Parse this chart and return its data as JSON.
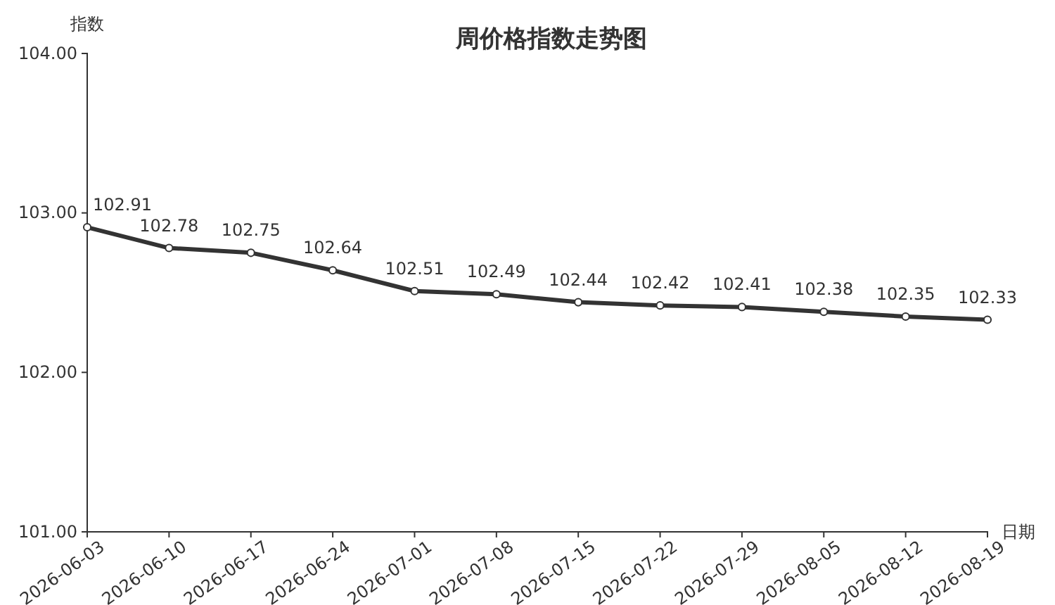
{
  "chart_data": {
    "type": "line",
    "title": "周价格指数走势图",
    "xlabel": "日期",
    "ylabel": "指数",
    "categories": [
      "2026-06-03",
      "2026-06-10",
      "2026-06-17",
      "2026-06-24",
      "2026-07-01",
      "2026-07-08",
      "2026-07-15",
      "2026-07-22",
      "2026-07-29",
      "2026-08-05",
      "2026-08-12",
      "2026-08-19"
    ],
    "series": [
      {
        "color": "#333333",
        "values": [
          102.91,
          102.78,
          102.75,
          102.64,
          102.51,
          102.49,
          102.44,
          102.42,
          102.41,
          102.38,
          102.35,
          102.33
        ]
      }
    ],
    "ylim": [
      101,
      104
    ],
    "yticks": [
      {
        "value": 101,
        "label": "101.00"
      },
      {
        "value": 102,
        "label": "102.00"
      },
      {
        "value": 103,
        "label": "103.00"
      },
      {
        "value": 104,
        "label": "104.00"
      }
    ],
    "data_labels": true,
    "marker": "circle",
    "line_style": "solid",
    "grid": false
  }
}
